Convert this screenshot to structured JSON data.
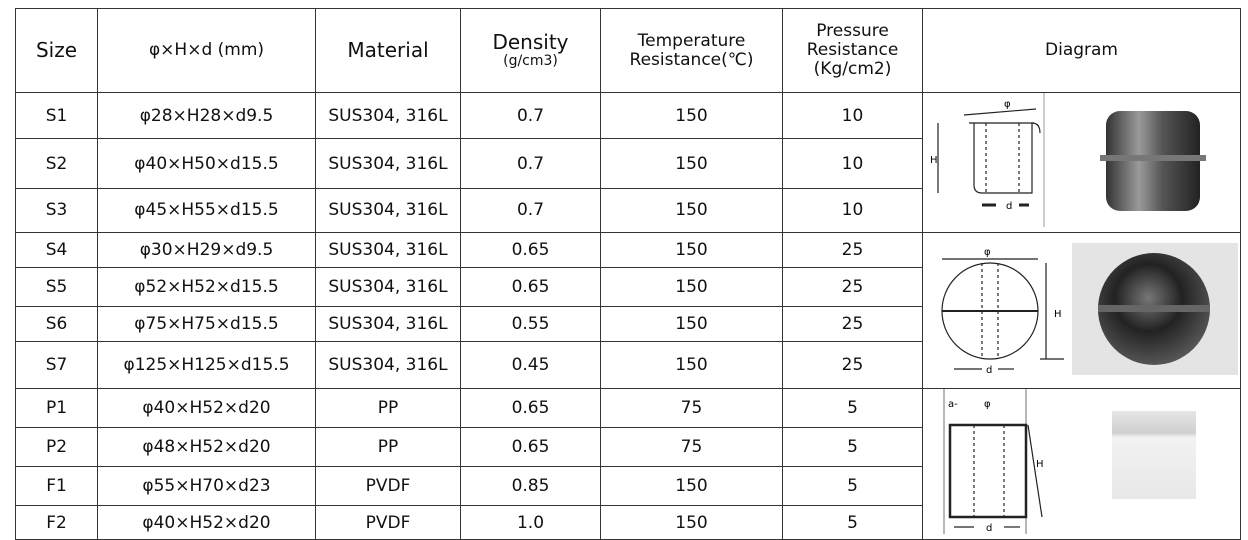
{
  "table": {
    "header": {
      "size": "Size",
      "dimensions": "φ×H×d (mm)",
      "material": "Material",
      "density": "Density",
      "density_unit": "(g/cm3)",
      "temperature": "Temperature Resistance(℃)",
      "pressure": "Pressure Resistance (Kg/cm2)",
      "diagram": "Diagram"
    },
    "rows": [
      [
        "S1",
        "φ28×H28×d9.5",
        "SUS304, 316L",
        "0.7",
        "150",
        "10"
      ],
      [
        "S2",
        "φ40×H50×d15.5",
        "SUS304, 316L",
        "0.7",
        "150",
        "10"
      ],
      [
        "S3",
        "φ45×H55×d15.5",
        "SUS304, 316L",
        "0.7",
        "150",
        "10"
      ],
      [
        "S4",
        "φ30×H29×d9.5",
        "SUS304, 316L",
        "0.65",
        "150",
        "25"
      ],
      [
        "S5",
        "φ52×H52×d15.5",
        "SUS304, 316L",
        "0.65",
        "150",
        "25"
      ],
      [
        "S6",
        "φ75×H75×d15.5",
        "SUS304, 316L",
        "0.55",
        "150",
        "25"
      ],
      [
        "S7",
        "φ125×H125×d15.5",
        "SUS304, 316L",
        "0.45",
        "150",
        "25"
      ],
      [
        "P1",
        "φ40×H52×d20",
        "PP",
        "0.65",
        "75",
        "5"
      ],
      [
        "P2",
        "φ48×H52×d20",
        "PP",
        "0.65",
        "75",
        "5"
      ],
      [
        "F1",
        "φ55×H70×d23",
        "PVDF",
        "0.85",
        "150",
        "5"
      ],
      [
        "F2",
        "φ40×H52×d20",
        "PVDF",
        "1.0",
        "150",
        "5"
      ]
    ]
  },
  "diagrams": [
    {
      "labels": [
        "φ",
        "H",
        "d"
      ]
    },
    {
      "labels": [
        "φ",
        "H",
        "d"
      ]
    },
    {
      "labels": [
        "a-",
        "φ",
        "H",
        "d"
      ]
    }
  ]
}
